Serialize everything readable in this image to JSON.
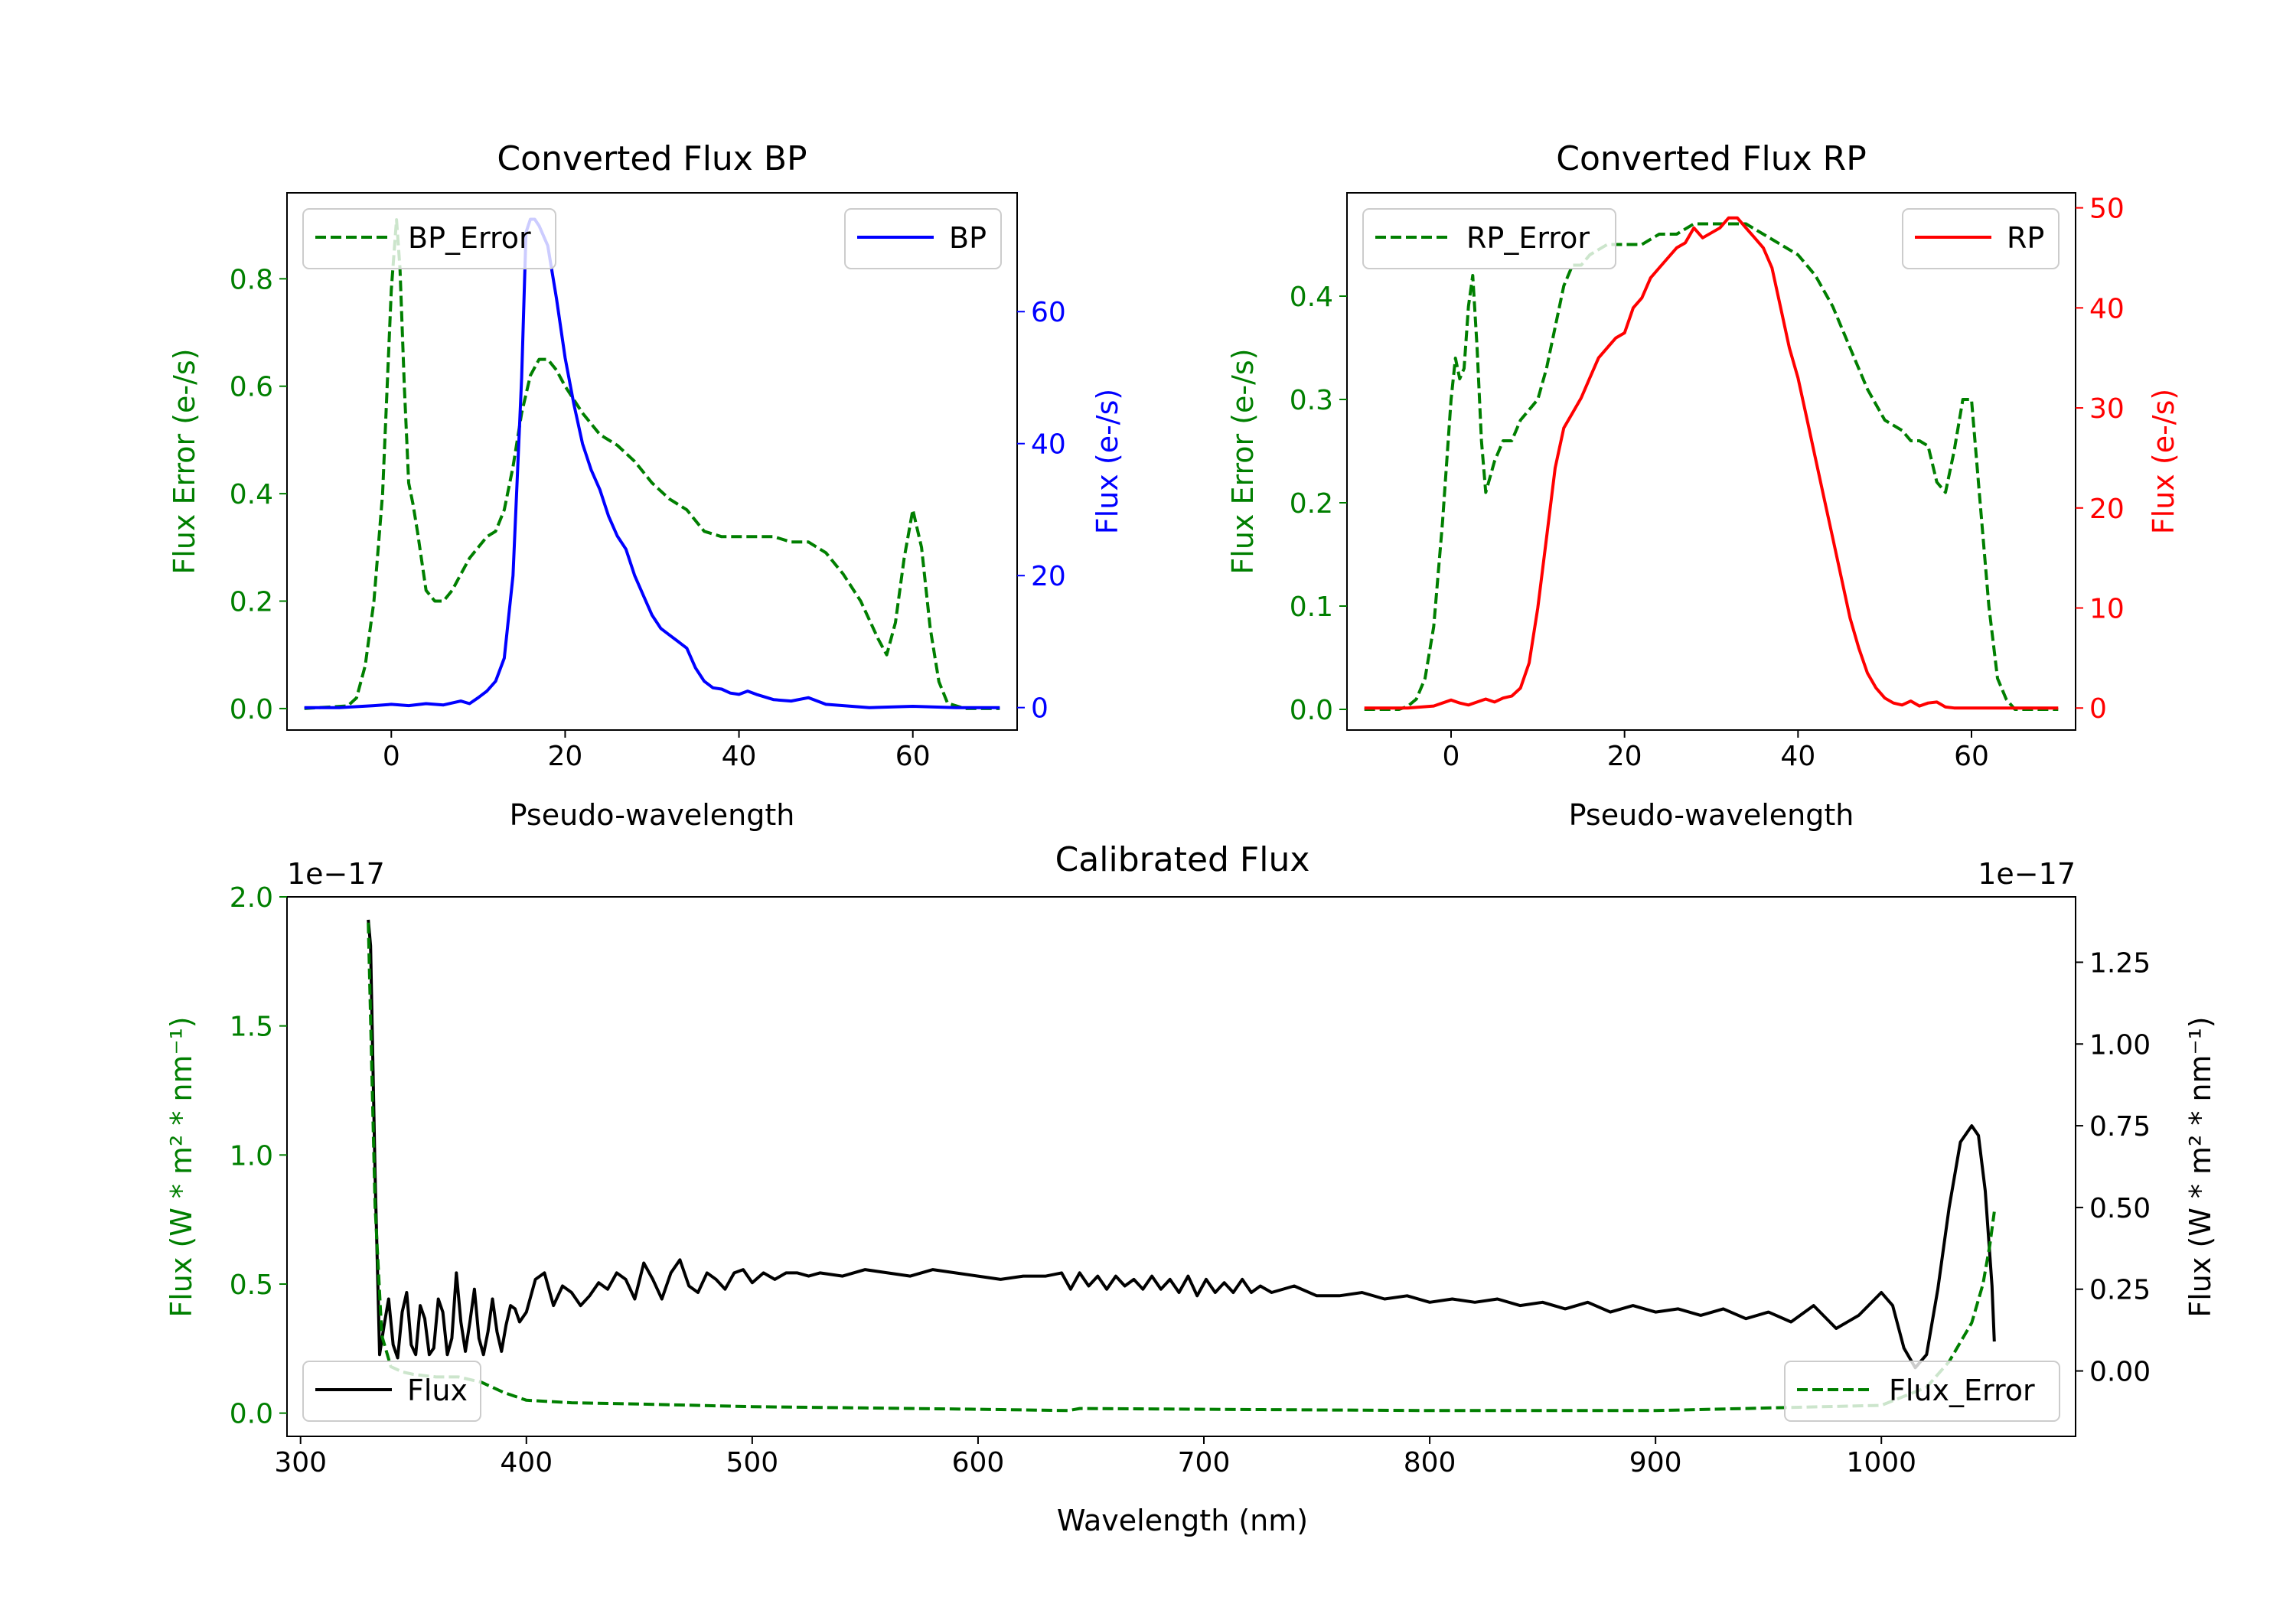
{
  "colors": {
    "green": "#007f00",
    "blue": "#0000ff",
    "red": "#ff0000",
    "black": "#000000",
    "frame": "#000000",
    "legend_edge": "#cccccc"
  },
  "chart_data": [
    {
      "id": "bp",
      "type": "line",
      "title": "Converted Flux BP",
      "xlabel": "Pseudo-wavelength",
      "ylabel_left": "Flux Error (e-/s)",
      "ylabel_right": "Flux (e-/s)",
      "xlim": [
        -12,
        72
      ],
      "ylim_left": [
        -0.04,
        0.96
      ],
      "ylim_right": [
        -3.4,
        78
      ],
      "xticks": [
        0,
        20,
        40,
        60
      ],
      "yticks_left": [
        0.0,
        0.2,
        0.4,
        0.6,
        0.8
      ],
      "yticks_right": [
        0,
        20,
        40,
        60
      ],
      "legend_left": "top-left",
      "legend_right": "top-right",
      "series": [
        {
          "name": "BP_Error",
          "axis": "left",
          "style": "dashed",
          "color": "#007f00",
          "x": [
            -10,
            -5,
            -4,
            -3,
            -2,
            -1,
            0,
            0.6,
            1,
            1.5,
            2,
            2.5,
            3,
            4,
            5,
            6,
            7,
            8,
            9,
            10,
            11,
            12,
            13,
            14,
            15,
            16,
            17,
            18,
            19,
            20,
            22,
            24,
            26,
            28,
            30,
            32,
            34,
            36,
            38,
            40,
            42,
            44,
            46,
            48,
            50,
            52,
            54,
            56,
            57,
            58,
            59,
            60,
            61,
            62,
            63,
            64,
            66,
            68,
            70
          ],
          "y": [
            0.0,
            0.005,
            0.02,
            0.08,
            0.2,
            0.4,
            0.78,
            0.91,
            0.82,
            0.6,
            0.42,
            0.38,
            0.33,
            0.22,
            0.2,
            0.2,
            0.22,
            0.25,
            0.28,
            0.3,
            0.32,
            0.33,
            0.37,
            0.45,
            0.55,
            0.62,
            0.65,
            0.65,
            0.63,
            0.6,
            0.55,
            0.51,
            0.49,
            0.46,
            0.42,
            0.39,
            0.37,
            0.33,
            0.32,
            0.32,
            0.32,
            0.32,
            0.31,
            0.31,
            0.29,
            0.25,
            0.2,
            0.13,
            0.1,
            0.16,
            0.28,
            0.37,
            0.3,
            0.15,
            0.05,
            0.01,
            0.0,
            0.0,
            0.0
          ]
        },
        {
          "name": "BP",
          "axis": "right",
          "style": "solid",
          "color": "#0000ff",
          "x": [
            -10,
            -6,
            -2,
            0,
            2,
            4,
            6,
            8,
            9,
            10,
            11,
            12,
            13,
            14,
            15,
            15.5,
            16,
            16.5,
            17,
            18,
            19,
            20,
            21,
            22,
            23,
            24,
            25,
            26,
            27,
            28,
            29,
            30,
            31,
            32,
            33,
            34,
            35,
            36,
            37,
            38,
            39,
            40,
            41,
            42,
            44,
            46,
            48,
            50,
            55,
            60,
            65,
            70
          ],
          "y": [
            0.0,
            0.0,
            0.3,
            0.5,
            0.3,
            0.6,
            0.4,
            1.0,
            0.6,
            1.5,
            2.5,
            4.0,
            7.5,
            20,
            50,
            72,
            74,
            74,
            73,
            70,
            62,
            53,
            46,
            40,
            36,
            33,
            29,
            26,
            24,
            20,
            17,
            14,
            12,
            11,
            10,
            9,
            6,
            4,
            3,
            2.8,
            2.2,
            2.0,
            2.5,
            2.0,
            1.2,
            1.0,
            1.5,
            0.5,
            0.0,
            0.2,
            0.0,
            0.0
          ]
        }
      ]
    },
    {
      "id": "rp",
      "type": "line",
      "title": "Converted Flux RP",
      "xlabel": "Pseudo-wavelength",
      "ylabel_left": "Flux Error (e-/s)",
      "ylabel_right": "Flux (e-/s)",
      "xlim": [
        -12,
        72
      ],
      "ylim_left": [
        -0.02,
        0.5
      ],
      "ylim_right": [
        -2.2,
        51.5
      ],
      "xticks": [
        0,
        20,
        40,
        60
      ],
      "yticks_left": [
        0.0,
        0.1,
        0.2,
        0.3,
        0.4
      ],
      "yticks_right": [
        0,
        10,
        20,
        30,
        40,
        50
      ],
      "legend_left": "top-left",
      "legend_right": "top-right",
      "series": [
        {
          "name": "RP_Error",
          "axis": "left",
          "style": "dashed",
          "color": "#007f00",
          "x": [
            -10,
            -6,
            -5,
            -4,
            -3,
            -2,
            -1,
            0,
            0.5,
            1,
            1.5,
            2,
            2.5,
            3,
            3.5,
            4,
            5,
            6,
            7,
            8,
            9,
            10,
            11,
            12,
            13,
            14,
            15,
            16,
            18,
            20,
            22,
            24,
            26,
            28,
            30,
            32,
            34,
            36,
            38,
            40,
            42,
            44,
            46,
            48,
            50,
            52,
            53,
            54,
            55,
            56,
            57,
            58,
            59,
            60,
            61,
            62,
            63,
            64,
            65,
            70
          ],
          "y": [
            0.0,
            0.0,
            0.003,
            0.01,
            0.03,
            0.08,
            0.18,
            0.3,
            0.34,
            0.32,
            0.33,
            0.39,
            0.42,
            0.35,
            0.26,
            0.21,
            0.24,
            0.26,
            0.26,
            0.28,
            0.29,
            0.3,
            0.33,
            0.37,
            0.41,
            0.43,
            0.43,
            0.44,
            0.45,
            0.45,
            0.45,
            0.46,
            0.46,
            0.47,
            0.47,
            0.47,
            0.47,
            0.46,
            0.45,
            0.44,
            0.42,
            0.39,
            0.35,
            0.31,
            0.28,
            0.27,
            0.26,
            0.26,
            0.255,
            0.22,
            0.21,
            0.25,
            0.3,
            0.3,
            0.2,
            0.1,
            0.03,
            0.01,
            0.0,
            0.0
          ]
        },
        {
          "name": "RP",
          "axis": "right",
          "style": "solid",
          "color": "#ff0000",
          "x": [
            -10,
            -5,
            -2,
            0,
            1,
            2,
            3,
            4,
            5,
            6,
            7,
            8,
            9,
            10,
            11,
            12,
            13,
            14,
            15,
            16,
            17,
            18,
            19,
            20,
            21,
            22,
            23,
            24,
            25,
            26,
            27,
            28,
            29,
            30,
            31,
            32,
            33,
            34,
            35,
            36,
            37,
            38,
            39,
            40,
            41,
            42,
            43,
            44,
            45,
            46,
            47,
            48,
            49,
            50,
            51,
            52,
            53,
            54,
            55,
            56,
            57,
            58,
            59,
            60,
            65,
            70
          ],
          "y": [
            0.0,
            0.0,
            0.2,
            0.8,
            0.5,
            0.3,
            0.6,
            0.9,
            0.6,
            1.0,
            1.2,
            2.0,
            4.5,
            10,
            17,
            24,
            28,
            29.5,
            31,
            33,
            35,
            36,
            37,
            37.5,
            40,
            41,
            43,
            44,
            45,
            46,
            46.5,
            48,
            47,
            47.5,
            48,
            49,
            49,
            48,
            47,
            46,
            44,
            40,
            36,
            33,
            29,
            25,
            21,
            17,
            13,
            9,
            6,
            3.5,
            2.0,
            1.0,
            0.5,
            0.3,
            0.7,
            0.2,
            0.5,
            0.6,
            0.1,
            0.0,
            0.0,
            0.0,
            0.0,
            0.0
          ]
        }
      ]
    },
    {
      "id": "cal",
      "type": "line",
      "title": "Calibrated Flux",
      "xlabel": "Wavelength (nm)",
      "ylabel_left": "Flux (W * m² * nm⁻¹)",
      "ylabel_right": "Flux (W * m² * nm⁻¹)",
      "offset_left": "1e−17",
      "offset_right": "1e−17",
      "xlim": [
        294,
        1086
      ],
      "ylim_left": [
        -0.09,
        2.0
      ],
      "ylim_right": [
        -0.2,
        1.45
      ],
      "xticks": [
        300,
        400,
        500,
        600,
        700,
        800,
        900,
        1000
      ],
      "yticks_left": [
        0.0,
        0.5,
        1.0,
        1.5,
        2.0
      ],
      "yticks_right": [
        0.0,
        0.25,
        0.5,
        0.75,
        1.0,
        1.25
      ],
      "ytick_labels_left": [
        "0.0",
        "0.5",
        "1.0",
        "1.5",
        "2.0"
      ],
      "ytick_labels_right": [
        "0.00",
        "0.25",
        "0.50",
        "0.75",
        "1.00",
        "1.25"
      ],
      "legend_left": "bottom-left",
      "legend_right": "bottom-right",
      "series": [
        {
          "name": "Flux",
          "axis": "right",
          "style": "solid",
          "color": "#000000",
          "x": [
            330,
            331,
            333,
            335,
            337,
            339,
            341,
            343,
            345,
            347,
            349,
            351,
            353,
            355,
            357,
            359,
            361,
            363,
            365,
            367,
            369,
            371,
            373,
            375,
            377,
            379,
            381,
            383,
            385,
            387,
            389,
            391,
            393,
            395,
            397,
            400,
            404,
            408,
            412,
            416,
            420,
            424,
            428,
            432,
            436,
            440,
            444,
            448,
            452,
            456,
            460,
            464,
            468,
            472,
            476,
            480,
            484,
            488,
            492,
            496,
            500,
            505,
            510,
            515,
            520,
            525,
            530,
            540,
            550,
            560,
            570,
            580,
            590,
            600,
            610,
            620,
            630,
            637,
            641,
            645,
            649,
            653,
            657,
            661,
            665,
            669,
            673,
            677,
            681,
            685,
            689,
            693,
            697,
            701,
            705,
            709,
            713,
            717,
            721,
            725,
            730,
            740,
            750,
            760,
            770,
            780,
            790,
            800,
            810,
            820,
            830,
            840,
            850,
            860,
            870,
            880,
            890,
            900,
            910,
            920,
            930,
            940,
            950,
            960,
            970,
            980,
            990,
            1000,
            1005,
            1010,
            1015,
            1020,
            1025,
            1030,
            1035,
            1040,
            1043,
            1046,
            1049,
            1050
          ],
          "y": [
            1.38,
            1.3,
            0.6,
            0.05,
            0.14,
            0.22,
            0.08,
            0.04,
            0.18,
            0.24,
            0.08,
            0.05,
            0.2,
            0.16,
            0.05,
            0.07,
            0.22,
            0.18,
            0.05,
            0.1,
            0.3,
            0.15,
            0.06,
            0.15,
            0.25,
            0.1,
            0.05,
            0.12,
            0.22,
            0.12,
            0.06,
            0.14,
            0.2,
            0.19,
            0.15,
            0.18,
            0.28,
            0.3,
            0.2,
            0.26,
            0.24,
            0.2,
            0.23,
            0.27,
            0.25,
            0.3,
            0.28,
            0.22,
            0.33,
            0.28,
            0.22,
            0.3,
            0.34,
            0.26,
            0.24,
            0.3,
            0.28,
            0.25,
            0.3,
            0.31,
            0.27,
            0.3,
            0.28,
            0.3,
            0.3,
            0.29,
            0.3,
            0.29,
            0.31,
            0.3,
            0.29,
            0.31,
            0.3,
            0.29,
            0.28,
            0.29,
            0.29,
            0.3,
            0.25,
            0.3,
            0.26,
            0.29,
            0.25,
            0.29,
            0.26,
            0.28,
            0.25,
            0.29,
            0.25,
            0.28,
            0.24,
            0.29,
            0.23,
            0.28,
            0.24,
            0.27,
            0.24,
            0.28,
            0.24,
            0.26,
            0.24,
            0.26,
            0.23,
            0.23,
            0.24,
            0.22,
            0.23,
            0.21,
            0.22,
            0.21,
            0.22,
            0.2,
            0.21,
            0.19,
            0.21,
            0.18,
            0.2,
            0.18,
            0.19,
            0.17,
            0.19,
            0.16,
            0.18,
            0.15,
            0.2,
            0.13,
            0.17,
            0.24,
            0.2,
            0.07,
            0.01,
            0.05,
            0.25,
            0.5,
            0.7,
            0.75,
            0.72,
            0.55,
            0.26,
            0.09
          ]
        },
        {
          "name": "Flux_Error",
          "axis": "left",
          "style": "dashed",
          "color": "#007f00",
          "x": [
            330,
            333,
            336,
            340,
            345,
            350,
            360,
            370,
            380,
            390,
            400,
            420,
            450,
            500,
            550,
            600,
            640,
            645,
            700,
            800,
            900,
            1000,
            1020,
            1030,
            1040,
            1045,
            1048,
            1050
          ],
          "y": [
            1.9,
            0.8,
            0.3,
            0.18,
            0.16,
            0.15,
            0.14,
            0.14,
            0.12,
            0.08,
            0.05,
            0.04,
            0.035,
            0.025,
            0.02,
            0.015,
            0.01,
            0.018,
            0.015,
            0.01,
            0.01,
            0.03,
            0.1,
            0.2,
            0.35,
            0.5,
            0.65,
            0.78
          ]
        }
      ]
    }
  ]
}
